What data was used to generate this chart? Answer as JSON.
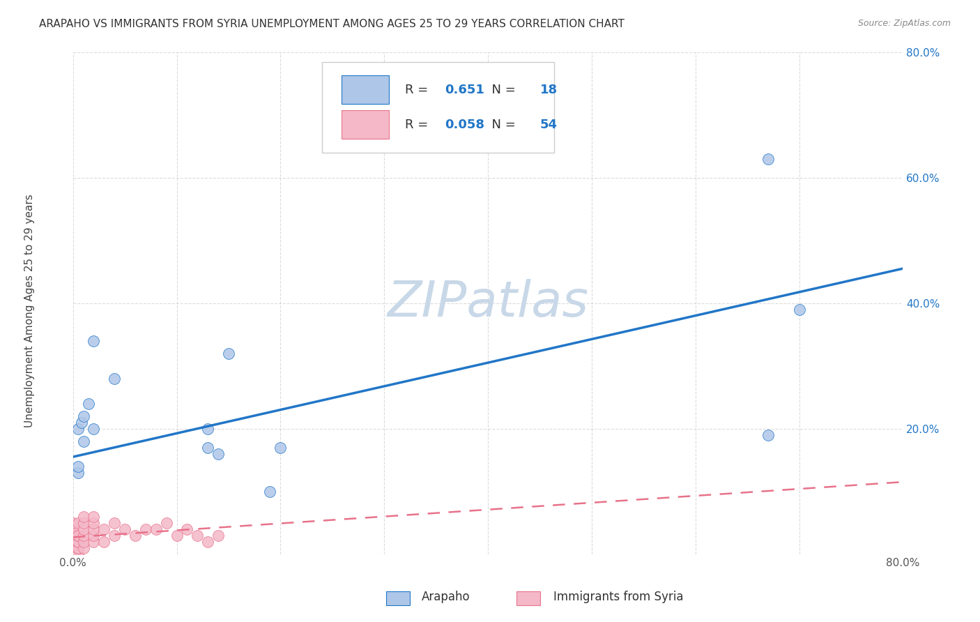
{
  "title": "ARAPAHO VS IMMIGRANTS FROM SYRIA UNEMPLOYMENT AMONG AGES 25 TO 29 YEARS CORRELATION CHART",
  "source": "Source: ZipAtlas.com",
  "ylabel": "Unemployment Among Ages 25 to 29 years",
  "xlim": [
    0,
    0.8
  ],
  "ylim": [
    0,
    0.8
  ],
  "xticks": [
    0.0,
    0.1,
    0.2,
    0.3,
    0.4,
    0.5,
    0.6,
    0.7,
    0.8
  ],
  "yticks": [
    0.0,
    0.2,
    0.4,
    0.6,
    0.8
  ],
  "xtick_labels": [
    "0.0%",
    "",
    "",
    "",
    "",
    "",
    "",
    "",
    "80.0%"
  ],
  "ytick_labels": [
    "",
    "20.0%",
    "40.0%",
    "60.0%",
    "80.0%"
  ],
  "arapaho_R": 0.651,
  "arapaho_N": 18,
  "syria_R": 0.058,
  "syria_N": 54,
  "arapaho_color": "#aec6e8",
  "arapaho_line_color": "#2176c7",
  "syria_color": "#f4b8c8",
  "syria_line_color": "#e8728a",
  "watermark": "ZIPatlas",
  "watermark_color": "#c8d8e8",
  "arapaho_x": [
    0.005,
    0.005,
    0.005,
    0.008,
    0.01,
    0.01,
    0.015,
    0.02,
    0.02,
    0.04,
    0.13,
    0.13,
    0.14,
    0.15,
    0.19,
    0.2,
    0.67,
    0.7
  ],
  "arapaho_y": [
    0.13,
    0.14,
    0.2,
    0.21,
    0.18,
    0.22,
    0.24,
    0.2,
    0.34,
    0.28,
    0.17,
    0.2,
    0.16,
    0.32,
    0.1,
    0.17,
    0.19,
    0.39
  ],
  "syria_x": [
    0.0,
    0.0,
    0.0,
    0.0,
    0.0,
    0.0,
    0.0,
    0.0,
    0.0,
    0.0,
    0.0,
    0.0,
    0.0,
    0.0,
    0.0,
    0.0,
    0.0,
    0.0,
    0.0,
    0.0,
    0.005,
    0.005,
    0.005,
    0.005,
    0.005,
    0.005,
    0.005,
    0.005,
    0.005,
    0.01,
    0.01,
    0.01,
    0.01,
    0.01,
    0.01,
    0.02,
    0.02,
    0.02,
    0.02,
    0.02,
    0.03,
    0.03,
    0.04,
    0.04,
    0.05,
    0.06,
    0.07,
    0.08,
    0.09,
    0.1,
    0.11,
    0.12,
    0.13,
    0.14
  ],
  "syria_y": [
    0.0,
    0.0,
    0.0,
    0.0,
    0.0,
    0.0,
    0.0,
    0.0,
    0.01,
    0.01,
    0.01,
    0.02,
    0.02,
    0.02,
    0.02,
    0.03,
    0.03,
    0.03,
    0.04,
    0.05,
    0.0,
    0.0,
    0.01,
    0.01,
    0.02,
    0.02,
    0.03,
    0.03,
    0.05,
    0.01,
    0.02,
    0.03,
    0.04,
    0.05,
    0.06,
    0.02,
    0.03,
    0.04,
    0.05,
    0.06,
    0.02,
    0.04,
    0.03,
    0.05,
    0.04,
    0.03,
    0.04,
    0.04,
    0.05,
    0.03,
    0.04,
    0.03,
    0.02,
    0.03
  ],
  "arapaho_line_x0": 0.0,
  "arapaho_line_y0": 0.155,
  "arapaho_line_x1": 0.8,
  "arapaho_line_y1": 0.455,
  "syria_line_x0": 0.0,
  "syria_line_y0": 0.027,
  "syria_line_x1": 0.8,
  "syria_line_y1": 0.115,
  "background_color": "#ffffff",
  "grid_color": "#cccccc",
  "title_fontsize": 11,
  "axis_label_fontsize": 11,
  "tick_fontsize": 11,
  "source_fontsize": 9,
  "watermark_fontsize": 52,
  "arapaho_dot_at_063": [
    0.67,
    0.63
  ],
  "legend_R_color": "#2176c7"
}
